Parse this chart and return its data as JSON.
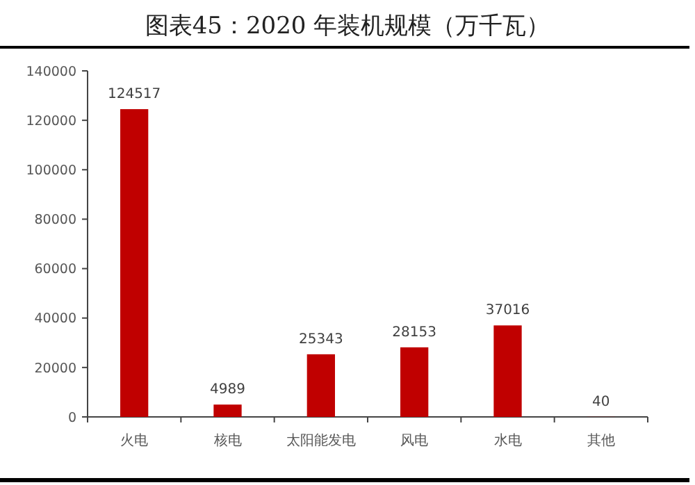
{
  "chart_data": {
    "type": "bar",
    "title": "图表45：2020 年装机规模（万千瓦）",
    "categories": [
      "火电",
      "核电",
      "太阳能发电",
      "风电",
      "水电",
      "其他"
    ],
    "values": [
      124517,
      4989,
      25343,
      28153,
      37016,
      40
    ],
    "color": "#c00000",
    "ylim": [
      0,
      140000
    ],
    "yticks": [
      0,
      20000,
      40000,
      60000,
      80000,
      100000,
      120000,
      140000
    ],
    "data_labels": true,
    "grid": false
  }
}
